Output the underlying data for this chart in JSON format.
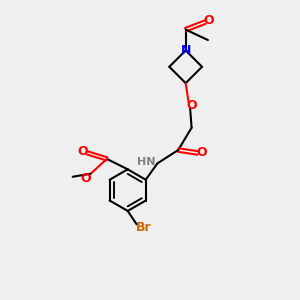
{
  "bg_color": "#efefef",
  "bond_color": "#000000",
  "atom_colors": {
    "O": "#ff0000",
    "N": "#0000ff",
    "Br": "#cc6600",
    "H": "#808080",
    "C": "#000000"
  },
  "title": "",
  "figsize": [
    3.0,
    3.0
  ],
  "dpi": 100
}
